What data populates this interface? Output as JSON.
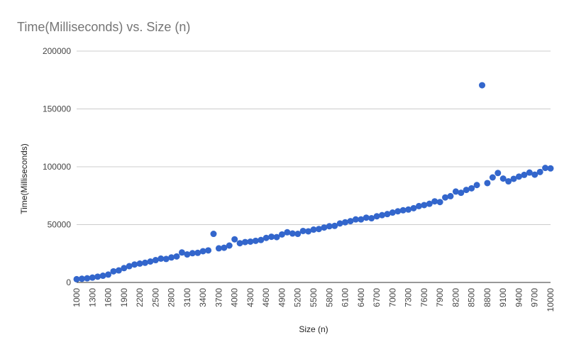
{
  "chart_data": {
    "type": "scatter",
    "title": "Time(Milliseconds) vs. Size (n)",
    "xlabel": "Size (n)",
    "ylabel": "Time(Milliseconds)",
    "xlim": [
      1000,
      10000
    ],
    "ylim": [
      0,
      200000
    ],
    "y_ticks": [
      "0",
      "50000",
      "100000",
      "150000",
      "200000"
    ],
    "x_ticks": [
      "1000",
      "1300",
      "1600",
      "1900",
      "2200",
      "2500",
      "2800",
      "3100",
      "3400",
      "3700",
      "4000",
      "4300",
      "4600",
      "4900",
      "5200",
      "5500",
      "5800",
      "6100",
      "6400",
      "6700",
      "7000",
      "7300",
      "7600",
      "7900",
      "8200",
      "8500",
      "8800",
      "9100",
      "9400",
      "9700",
      "10000"
    ],
    "grid": true,
    "point_color": "#3366cc",
    "series": [
      {
        "x": [
          1000,
          1100,
          1200,
          1300,
          1400,
          1500,
          1600,
          1700,
          1800,
          1900,
          2000,
          2100,
          2200,
          2300,
          2400,
          2500,
          2600,
          2700,
          2800,
          2900,
          3000,
          3100,
          3200,
          3300,
          3400,
          3500,
          3600,
          3700,
          3800,
          3900,
          4000,
          4100,
          4200,
          4300,
          4400,
          4500,
          4600,
          4700,
          4800,
          4900,
          5000,
          5100,
          5200,
          5300,
          5400,
          5500,
          5600,
          5700,
          5800,
          5900,
          6000,
          6100,
          6200,
          6300,
          6400,
          6500,
          6600,
          6700,
          6800,
          6900,
          7000,
          7100,
          7200,
          7300,
          7400,
          7500,
          7600,
          7700,
          7800,
          7900,
          8000,
          8100,
          8200,
          8300,
          8400,
          8500,
          8600,
          8700,
          8800,
          8900,
          9000,
          9100,
          9200,
          9300,
          9400,
          9500,
          9600,
          9700,
          9800,
          9900,
          10000
        ],
        "y": [
          2800,
          3200,
          3600,
          4200,
          5000,
          5800,
          6800,
          9600,
          10400,
          12400,
          14100,
          15500,
          16300,
          17000,
          18100,
          19300,
          20600,
          20300,
          21600,
          22500,
          25900,
          24200,
          25300,
          25600,
          27000,
          27700,
          42000,
          29500,
          30000,
          31900,
          37300,
          33900,
          34900,
          35300,
          36000,
          36700,
          38500,
          39500,
          39200,
          41500,
          43400,
          42300,
          42000,
          44500,
          44200,
          45700,
          46200,
          47500,
          48600,
          48900,
          51000,
          52000,
          53000,
          54500,
          54500,
          56000,
          55500,
          57200,
          58200,
          59100,
          60400,
          61500,
          62400,
          63000,
          64200,
          66000,
          66900,
          68000,
          70100,
          69500,
          73500,
          74600,
          78600,
          77500,
          80000,
          81400,
          84200,
          170500,
          85900,
          90800,
          94600,
          89800,
          87400,
          89600,
          91500,
          93000,
          95000,
          93200,
          95500,
          99000,
          98600
        ]
      }
    ]
  }
}
